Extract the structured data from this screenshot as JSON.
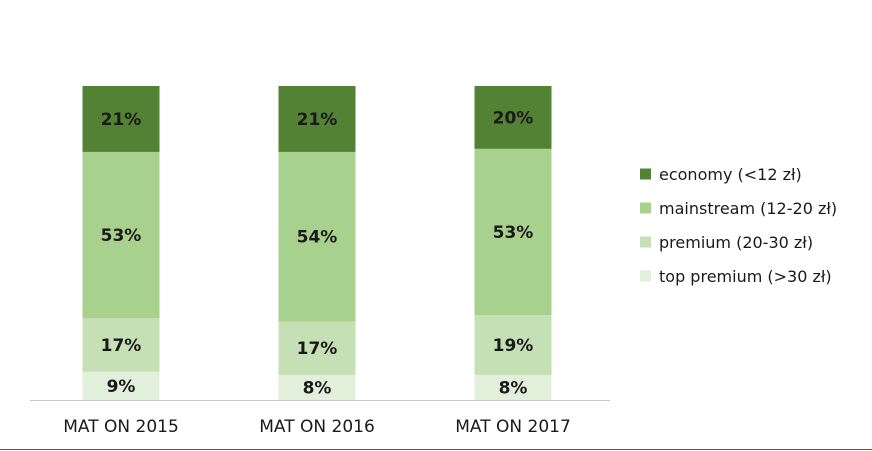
{
  "chart_data": {
    "type": "bar",
    "stacked": true,
    "percent": true,
    "categories": [
      "MAT ON 2015",
      "MAT ON 2016",
      "MAT ON 2017"
    ],
    "series": [
      {
        "name": "top premium (>30 zł)",
        "color": "#e2efda",
        "values": [
          9,
          8,
          8
        ],
        "labels": [
          "9%",
          "8%",
          "8%"
        ]
      },
      {
        "name": "premium (20-30 zł)",
        "color": "#c5e0b4",
        "values": [
          17,
          17,
          19
        ],
        "labels": [
          "17%",
          "17%",
          "19%"
        ]
      },
      {
        "name": "mainstream (12-20 zł)",
        "color": "#a9d18e",
        "values": [
          53,
          54,
          53
        ],
        "labels": [
          "53%",
          "54%",
          "53%"
        ]
      },
      {
        "name": "economy (<12 zł)",
        "color": "#548235",
        "values": [
          21,
          21,
          20
        ],
        "labels": [
          "21%",
          "21%",
          "20%"
        ]
      }
    ],
    "legend_order": [
      "economy (<12 zł)",
      "mainstream (12-20 zł)",
      "premium (20-30 zł)",
      "top premium (>30 zł)"
    ],
    "legend_position": "right",
    "ylim": [
      0,
      100
    ],
    "grid": false
  }
}
